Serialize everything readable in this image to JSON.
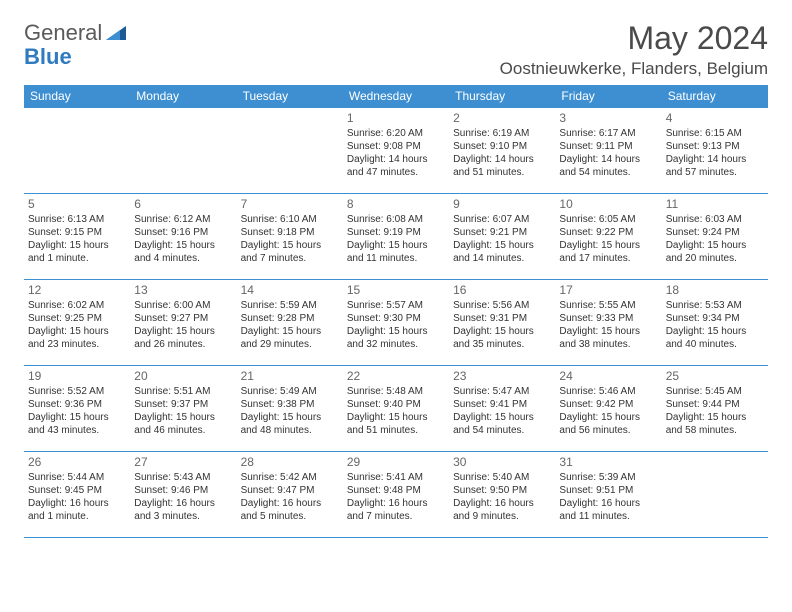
{
  "logo": {
    "text1": "General",
    "text2": "Blue"
  },
  "title": "May 2024",
  "location": "Oostnieuwkerke, Flanders, Belgium",
  "colors": {
    "header_bg": "#3d8fd1",
    "header_text": "#ffffff",
    "border": "#3d8fd1",
    "text": "#333333",
    "logo_gray": "#5a5a5a",
    "logo_blue": "#2f7bbf"
  },
  "weekdays": [
    "Sunday",
    "Monday",
    "Tuesday",
    "Wednesday",
    "Thursday",
    "Friday",
    "Saturday"
  ],
  "weeks": [
    [
      null,
      null,
      null,
      {
        "d": "1",
        "sr": "Sunrise: 6:20 AM",
        "ss": "Sunset: 9:08 PM",
        "dl1": "Daylight: 14 hours",
        "dl2": "and 47 minutes."
      },
      {
        "d": "2",
        "sr": "Sunrise: 6:19 AM",
        "ss": "Sunset: 9:10 PM",
        "dl1": "Daylight: 14 hours",
        "dl2": "and 51 minutes."
      },
      {
        "d": "3",
        "sr": "Sunrise: 6:17 AM",
        "ss": "Sunset: 9:11 PM",
        "dl1": "Daylight: 14 hours",
        "dl2": "and 54 minutes."
      },
      {
        "d": "4",
        "sr": "Sunrise: 6:15 AM",
        "ss": "Sunset: 9:13 PM",
        "dl1": "Daylight: 14 hours",
        "dl2": "and 57 minutes."
      }
    ],
    [
      {
        "d": "5",
        "sr": "Sunrise: 6:13 AM",
        "ss": "Sunset: 9:15 PM",
        "dl1": "Daylight: 15 hours",
        "dl2": "and 1 minute."
      },
      {
        "d": "6",
        "sr": "Sunrise: 6:12 AM",
        "ss": "Sunset: 9:16 PM",
        "dl1": "Daylight: 15 hours",
        "dl2": "and 4 minutes."
      },
      {
        "d": "7",
        "sr": "Sunrise: 6:10 AM",
        "ss": "Sunset: 9:18 PM",
        "dl1": "Daylight: 15 hours",
        "dl2": "and 7 minutes."
      },
      {
        "d": "8",
        "sr": "Sunrise: 6:08 AM",
        "ss": "Sunset: 9:19 PM",
        "dl1": "Daylight: 15 hours",
        "dl2": "and 11 minutes."
      },
      {
        "d": "9",
        "sr": "Sunrise: 6:07 AM",
        "ss": "Sunset: 9:21 PM",
        "dl1": "Daylight: 15 hours",
        "dl2": "and 14 minutes."
      },
      {
        "d": "10",
        "sr": "Sunrise: 6:05 AM",
        "ss": "Sunset: 9:22 PM",
        "dl1": "Daylight: 15 hours",
        "dl2": "and 17 minutes."
      },
      {
        "d": "11",
        "sr": "Sunrise: 6:03 AM",
        "ss": "Sunset: 9:24 PM",
        "dl1": "Daylight: 15 hours",
        "dl2": "and 20 minutes."
      }
    ],
    [
      {
        "d": "12",
        "sr": "Sunrise: 6:02 AM",
        "ss": "Sunset: 9:25 PM",
        "dl1": "Daylight: 15 hours",
        "dl2": "and 23 minutes."
      },
      {
        "d": "13",
        "sr": "Sunrise: 6:00 AM",
        "ss": "Sunset: 9:27 PM",
        "dl1": "Daylight: 15 hours",
        "dl2": "and 26 minutes."
      },
      {
        "d": "14",
        "sr": "Sunrise: 5:59 AM",
        "ss": "Sunset: 9:28 PM",
        "dl1": "Daylight: 15 hours",
        "dl2": "and 29 minutes."
      },
      {
        "d": "15",
        "sr": "Sunrise: 5:57 AM",
        "ss": "Sunset: 9:30 PM",
        "dl1": "Daylight: 15 hours",
        "dl2": "and 32 minutes."
      },
      {
        "d": "16",
        "sr": "Sunrise: 5:56 AM",
        "ss": "Sunset: 9:31 PM",
        "dl1": "Daylight: 15 hours",
        "dl2": "and 35 minutes."
      },
      {
        "d": "17",
        "sr": "Sunrise: 5:55 AM",
        "ss": "Sunset: 9:33 PM",
        "dl1": "Daylight: 15 hours",
        "dl2": "and 38 minutes."
      },
      {
        "d": "18",
        "sr": "Sunrise: 5:53 AM",
        "ss": "Sunset: 9:34 PM",
        "dl1": "Daylight: 15 hours",
        "dl2": "and 40 minutes."
      }
    ],
    [
      {
        "d": "19",
        "sr": "Sunrise: 5:52 AM",
        "ss": "Sunset: 9:36 PM",
        "dl1": "Daylight: 15 hours",
        "dl2": "and 43 minutes."
      },
      {
        "d": "20",
        "sr": "Sunrise: 5:51 AM",
        "ss": "Sunset: 9:37 PM",
        "dl1": "Daylight: 15 hours",
        "dl2": "and 46 minutes."
      },
      {
        "d": "21",
        "sr": "Sunrise: 5:49 AM",
        "ss": "Sunset: 9:38 PM",
        "dl1": "Daylight: 15 hours",
        "dl2": "and 48 minutes."
      },
      {
        "d": "22",
        "sr": "Sunrise: 5:48 AM",
        "ss": "Sunset: 9:40 PM",
        "dl1": "Daylight: 15 hours",
        "dl2": "and 51 minutes."
      },
      {
        "d": "23",
        "sr": "Sunrise: 5:47 AM",
        "ss": "Sunset: 9:41 PM",
        "dl1": "Daylight: 15 hours",
        "dl2": "and 54 minutes."
      },
      {
        "d": "24",
        "sr": "Sunrise: 5:46 AM",
        "ss": "Sunset: 9:42 PM",
        "dl1": "Daylight: 15 hours",
        "dl2": "and 56 minutes."
      },
      {
        "d": "25",
        "sr": "Sunrise: 5:45 AM",
        "ss": "Sunset: 9:44 PM",
        "dl1": "Daylight: 15 hours",
        "dl2": "and 58 minutes."
      }
    ],
    [
      {
        "d": "26",
        "sr": "Sunrise: 5:44 AM",
        "ss": "Sunset: 9:45 PM",
        "dl1": "Daylight: 16 hours",
        "dl2": "and 1 minute."
      },
      {
        "d": "27",
        "sr": "Sunrise: 5:43 AM",
        "ss": "Sunset: 9:46 PM",
        "dl1": "Daylight: 16 hours",
        "dl2": "and 3 minutes."
      },
      {
        "d": "28",
        "sr": "Sunrise: 5:42 AM",
        "ss": "Sunset: 9:47 PM",
        "dl1": "Daylight: 16 hours",
        "dl2": "and 5 minutes."
      },
      {
        "d": "29",
        "sr": "Sunrise: 5:41 AM",
        "ss": "Sunset: 9:48 PM",
        "dl1": "Daylight: 16 hours",
        "dl2": "and 7 minutes."
      },
      {
        "d": "30",
        "sr": "Sunrise: 5:40 AM",
        "ss": "Sunset: 9:50 PM",
        "dl1": "Daylight: 16 hours",
        "dl2": "and 9 minutes."
      },
      {
        "d": "31",
        "sr": "Sunrise: 5:39 AM",
        "ss": "Sunset: 9:51 PM",
        "dl1": "Daylight: 16 hours",
        "dl2": "and 11 minutes."
      },
      null
    ]
  ]
}
